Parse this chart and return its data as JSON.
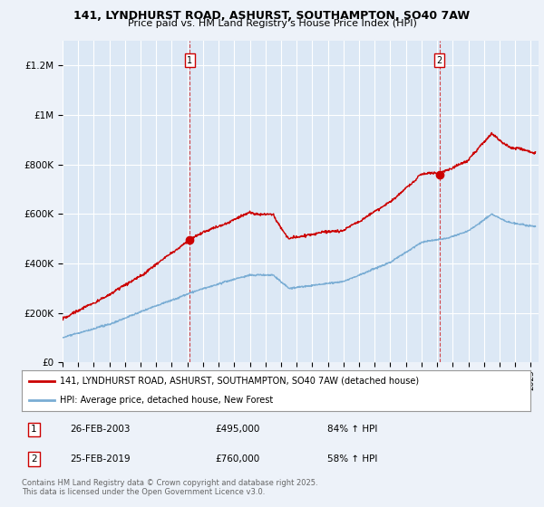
{
  "title1": "141, LYNDHURST ROAD, ASHURST, SOUTHAMPTON, SO40 7AW",
  "title2": "Price paid vs. HM Land Registry's House Price Index (HPI)",
  "background_color": "#edf2f9",
  "plot_bg_color": "#dce8f5",
  "sale1_date_num": 2003.15,
  "sale1_price": 495000,
  "sale2_date_num": 2019.15,
  "sale2_price": 760000,
  "legend1": "141, LYNDHURST ROAD, ASHURST, SOUTHAMPTON, SO40 7AW (detached house)",
  "legend2": "HPI: Average price, detached house, New Forest",
  "annotation1_label": "1",
  "annotation1_date": "26-FEB-2003",
  "annotation1_price": "£495,000",
  "annotation1_hpi": "84% ↑ HPI",
  "annotation2_label": "2",
  "annotation2_date": "25-FEB-2019",
  "annotation2_price": "£760,000",
  "annotation2_hpi": "58% ↑ HPI",
  "footer": "Contains HM Land Registry data © Crown copyright and database right 2025.\nThis data is licensed under the Open Government Licence v3.0.",
  "xmin": 1995.0,
  "xmax": 2025.5,
  "ymin": 0,
  "ymax": 1300000,
  "red_color": "#cc0000",
  "blue_color": "#7aadd4"
}
